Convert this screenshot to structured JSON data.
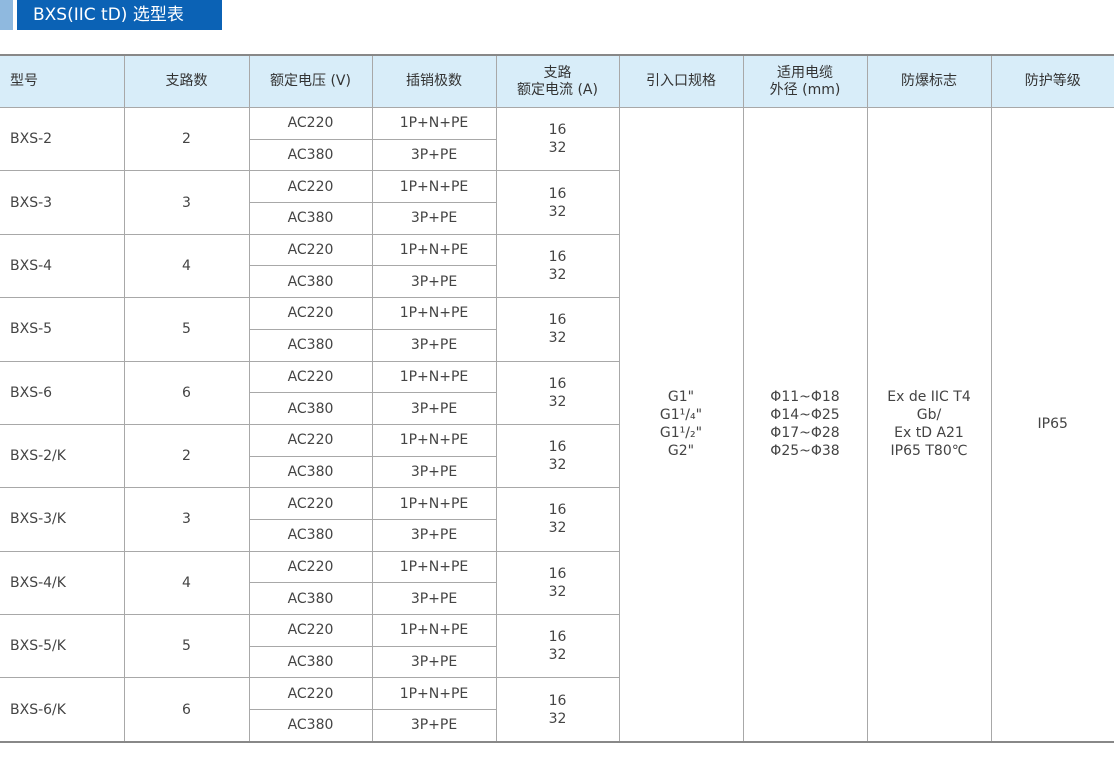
{
  "title": "BXS(IIC tD) 选型表",
  "headers": [
    "型号",
    "支路数",
    "额定电压 (V)",
    "插销极数",
    "支路\n额定电流 (A)",
    "引入口规格",
    "适用电缆\n外径 (mm)",
    "防爆标志",
    "防护等级"
  ],
  "rows": [
    {
      "model": "BXS-2",
      "branches": "2"
    },
    {
      "model": "BXS-3",
      "branches": "3"
    },
    {
      "model": "BXS-4",
      "branches": "4"
    },
    {
      "model": "BXS-5",
      "branches": "5"
    },
    {
      "model": "BXS-6",
      "branches": "6"
    },
    {
      "model": "BXS-2/K",
      "branches": "2"
    },
    {
      "model": "BXS-3/K",
      "branches": "3"
    },
    {
      "model": "BXS-4/K",
      "branches": "4"
    },
    {
      "model": "BXS-5/K",
      "branches": "5"
    },
    {
      "model": "BXS-6/K",
      "branches": "6"
    }
  ],
  "voltages": [
    "AC220",
    "AC380"
  ],
  "poles": [
    "1P+N+PE",
    "3P+PE"
  ],
  "currents": "16\n32",
  "entry_spec": [
    "G1\"",
    "G1¹/₄\"",
    "G1¹/₂\"",
    "G2\""
  ],
  "cable_diameter": [
    "Φ11~Φ18",
    "Φ14~Φ25",
    "Φ17~Φ28",
    "Φ25~Φ38"
  ],
  "ex_marking": [
    "Ex de IIC T4",
    "Gb/",
    "Ex tD A21",
    "IP65 T80℃"
  ],
  "ip_rating": "IP65",
  "colors": {
    "title_bg": "#0b62b5",
    "header_bg": "#d8edf9",
    "border": "#a8a8a8"
  }
}
